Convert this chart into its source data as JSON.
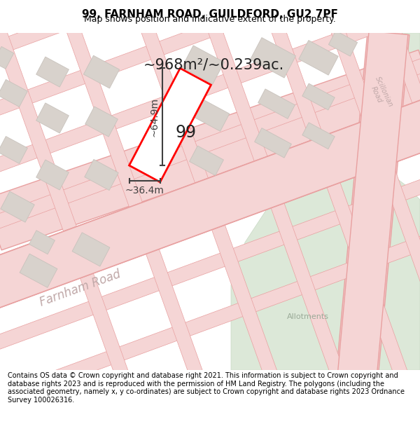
{
  "title": "99, FARNHAM ROAD, GUILDFORD, GU2 7PF",
  "subtitle": "Map shows position and indicative extent of the property.",
  "area_text": "~968m²/~0.239ac.",
  "dim_width": "~36.4m",
  "dim_height": "~64.9m",
  "property_number": "99",
  "footer": "Contains OS data © Crown copyright and database right 2021. This information is subject to Crown copyright and database rights 2023 and is reproduced with the permission of HM Land Registry. The polygons (including the associated geometry, namely x, y co-ordinates) are subject to Crown copyright and database rights 2023 Ordnance Survey 100026316.",
  "map_bg": "#f2eeeb",
  "footer_bg": "#ffffff",
  "road_fill": "#f5d5d5",
  "road_edge": "#e8a0a0",
  "road_thin_fill": "#f5d5d5",
  "road_thin_edge": "#e8a0a0",
  "building_fill": "#d8d2cc",
  "building_edge": "#c8c2bc",
  "green_fill": "#dce8d8",
  "green_edge": "#c8d8c4",
  "property_edge": "#ff0000",
  "property_fill": "#ffffff",
  "label_road_color": "#c0a8a8",
  "label_road_sci_color": "#c0a8a8",
  "dim_color": "#404040",
  "area_color": "#222222",
  "num_color": "#222222"
}
